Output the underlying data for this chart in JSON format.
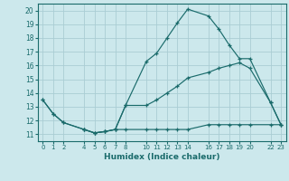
{
  "xlabel": "Humidex (Indice chaleur)",
  "bg_color": "#cce8ec",
  "grid_color": "#aacdd4",
  "line_color": "#1a6b6b",
  "xlim": [
    -0.5,
    23.5
  ],
  "ylim": [
    10.5,
    20.5
  ],
  "xticks": [
    0,
    1,
    2,
    4,
    5,
    6,
    7,
    8,
    10,
    11,
    12,
    13,
    14,
    16,
    17,
    18,
    19,
    20,
    22,
    23
  ],
  "yticks": [
    11,
    12,
    13,
    14,
    15,
    16,
    17,
    18,
    19,
    20
  ],
  "line1_x": [
    0,
    1,
    2,
    4,
    5,
    6,
    7,
    8,
    10,
    11,
    12,
    13,
    14,
    16,
    17,
    18,
    19,
    20,
    22,
    23
  ],
  "line1_y": [
    13.5,
    12.5,
    11.85,
    11.35,
    11.1,
    11.2,
    11.35,
    13.1,
    16.3,
    16.9,
    18.0,
    19.1,
    20.1,
    19.6,
    18.65,
    17.5,
    16.5,
    16.5,
    13.3,
    11.7
  ],
  "line2_x": [
    0,
    1,
    2,
    4,
    5,
    6,
    7,
    8,
    10,
    11,
    12,
    13,
    14,
    16,
    17,
    18,
    19,
    20,
    22,
    23
  ],
  "line2_y": [
    13.5,
    12.5,
    11.85,
    11.35,
    11.1,
    11.2,
    11.35,
    13.1,
    13.1,
    13.5,
    14.0,
    14.5,
    15.1,
    15.5,
    15.8,
    16.0,
    16.2,
    15.8,
    13.3,
    11.7
  ],
  "line3_x": [
    4,
    5,
    6,
    7,
    8,
    10,
    11,
    12,
    13,
    14,
    16,
    17,
    18,
    19,
    20,
    22,
    23
  ],
  "line3_y": [
    11.35,
    11.1,
    11.2,
    11.35,
    11.35,
    11.35,
    11.35,
    11.35,
    11.35,
    11.35,
    11.7,
    11.7,
    11.7,
    11.7,
    11.7,
    11.7,
    11.7
  ]
}
